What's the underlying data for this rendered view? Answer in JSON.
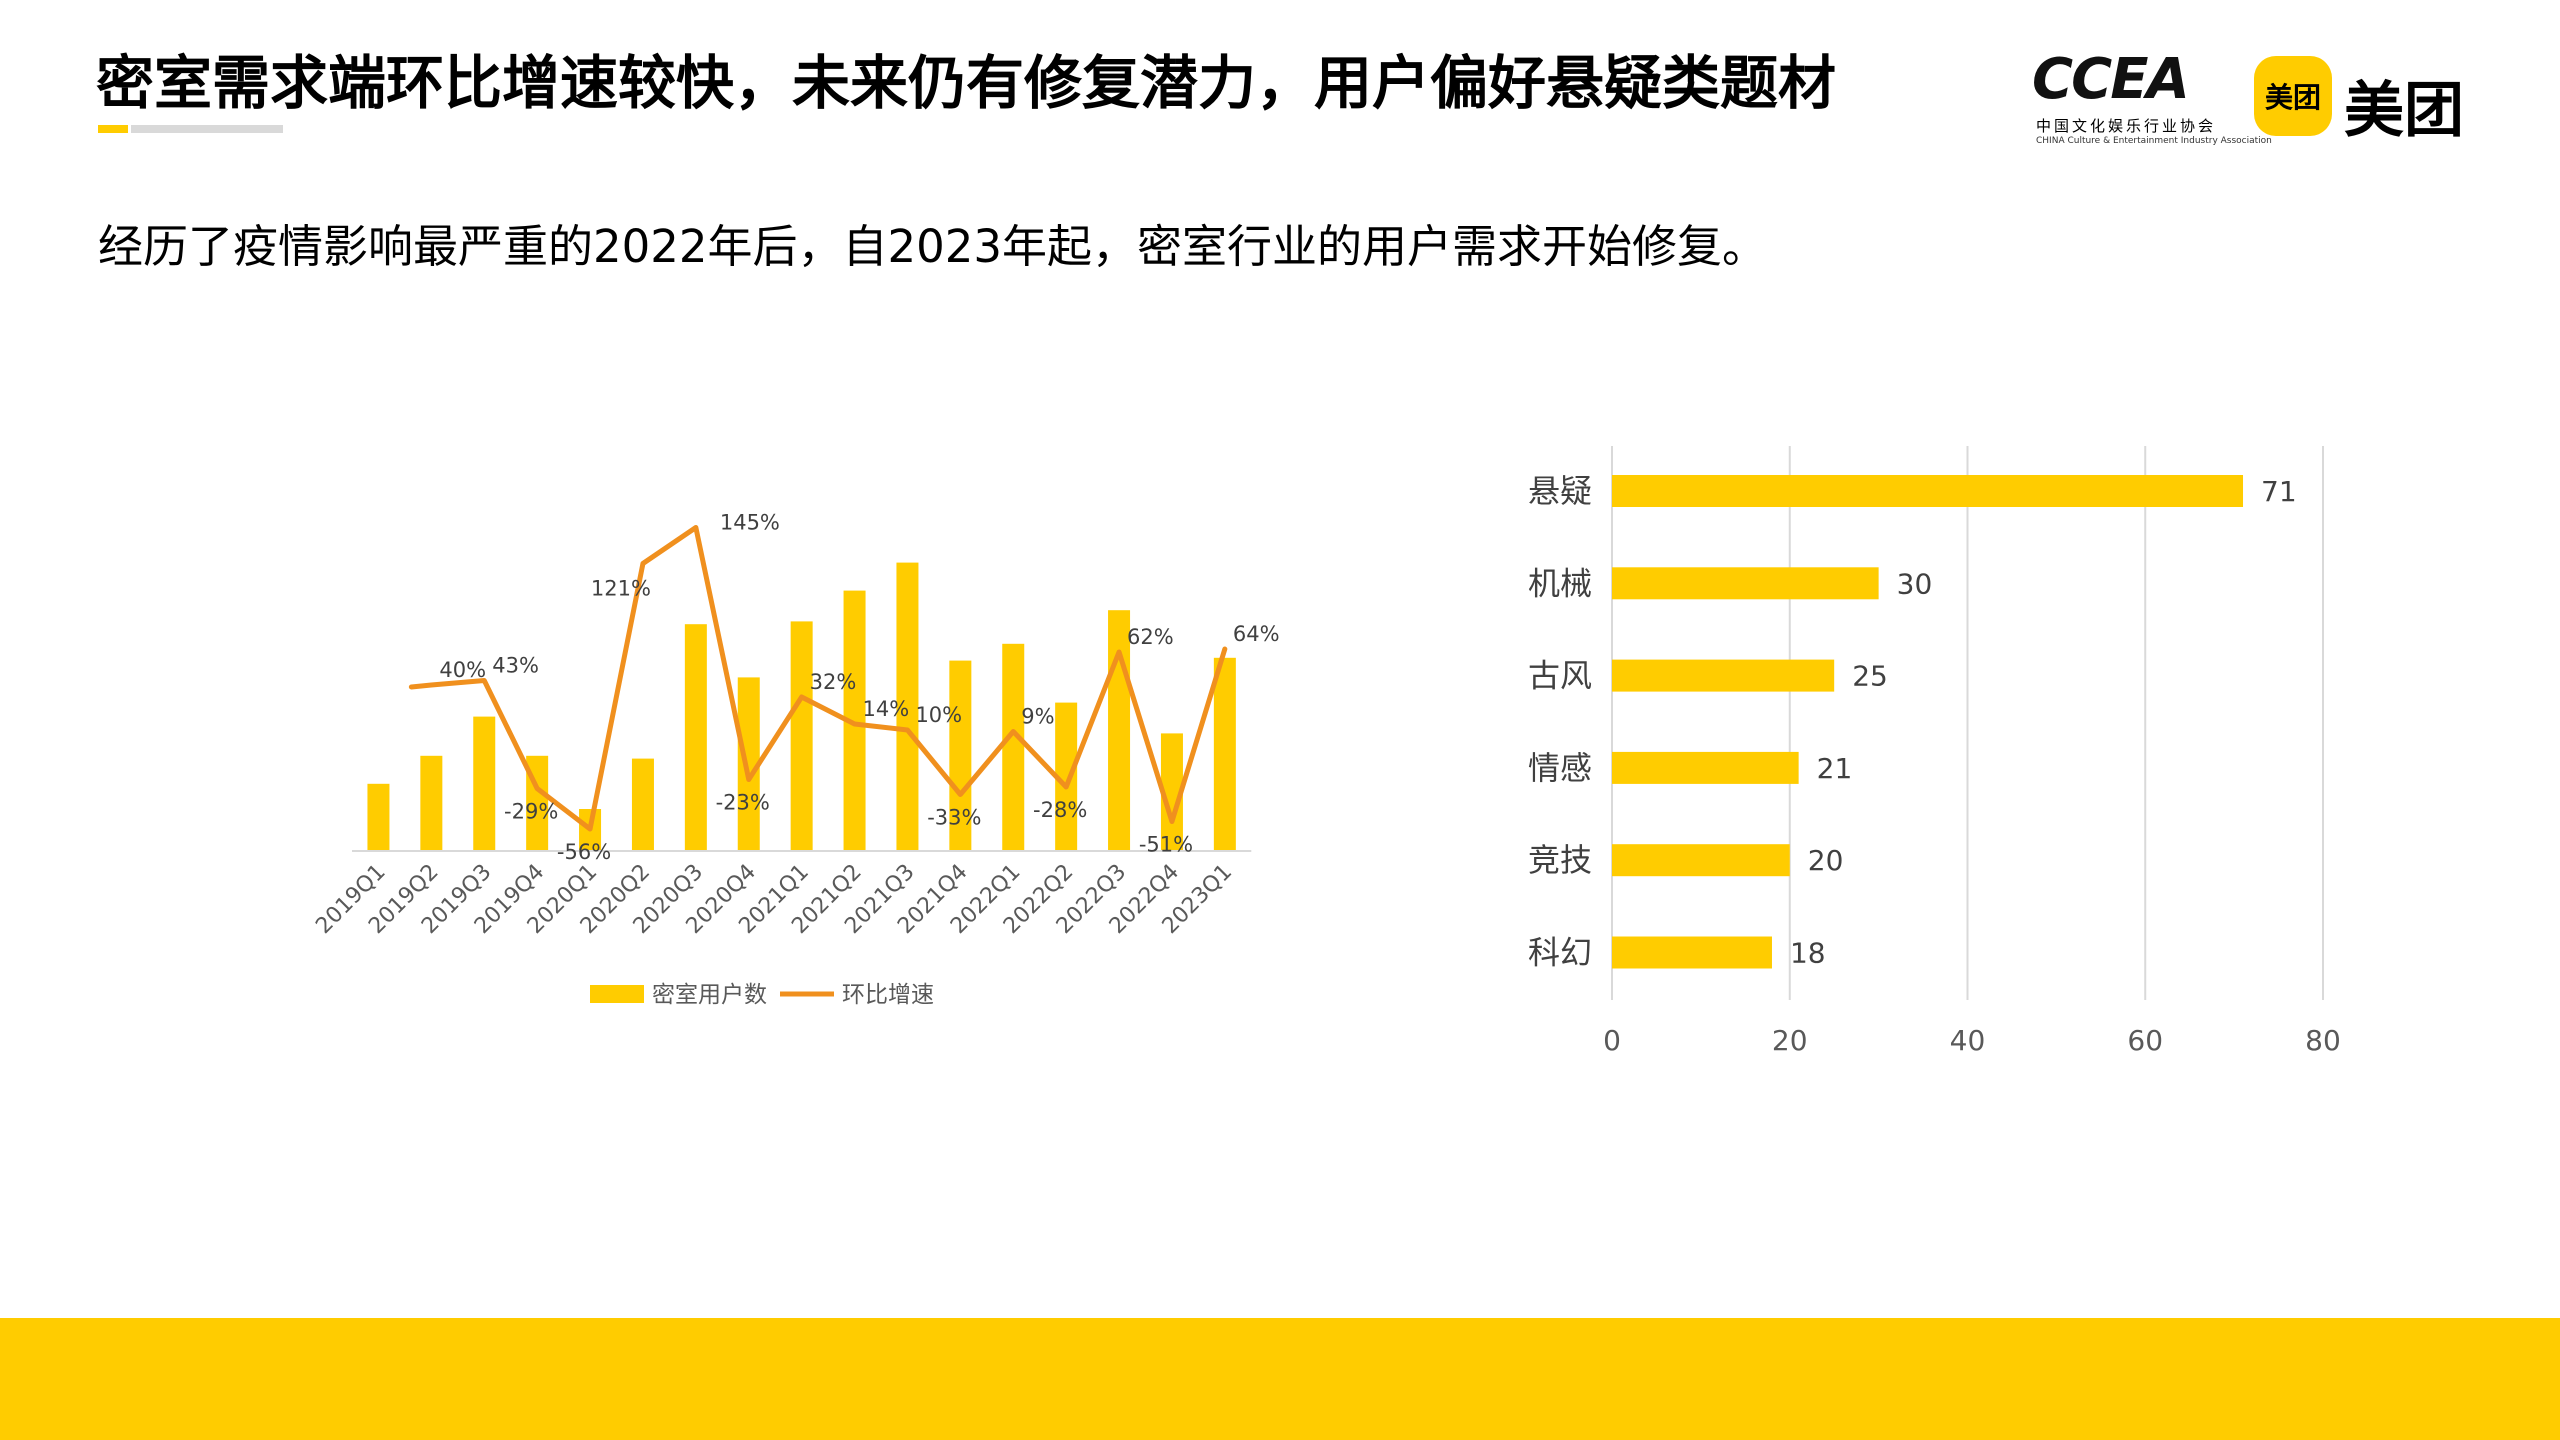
{
  "header": {
    "title": "密室需求端环比增速较快，未来仍有修复潜力，用户偏好悬疑类题材",
    "subtitle": "经历了疫情影响最严重的2022年后，自2023年起，密室行业的用户需求开始修复。"
  },
  "logos": {
    "ccea_text": "CCEA",
    "ccea_cn": "中国文化娱乐行业协会",
    "ccea_en": "CHINA Culture & Entertainment Industry Association",
    "meituan_badge": "美团",
    "meituan_text": "美团"
  },
  "colors": {
    "bar": "#ffcc00",
    "line": "#f0901e",
    "footer": "#ffcc00",
    "accent": "#ffcc00"
  },
  "chart_data": [
    {
      "type": "bar+line",
      "categories": [
        "2019Q1",
        "2019Q2",
        "2019Q3",
        "2019Q4",
        "2020Q1",
        "2020Q2",
        "2020Q3",
        "2020Q4",
        "2021Q1",
        "2021Q2",
        "2021Q3",
        "2021Q4",
        "2022Q1",
        "2022Q2",
        "2022Q3",
        "2022Q4",
        "2023Q1"
      ],
      "bar_series": {
        "name": "密室用户数",
        "values": [
          24,
          34,
          48,
          34,
          15,
          33,
          81,
          62,
          82,
          93,
          103,
          68,
          74,
          53,
          86,
          42,
          69
        ]
      },
      "line_series": {
        "name": "环比增速",
        "values": [
          null,
          40,
          43,
          -29,
          -56,
          121,
          145,
          -23,
          32,
          14,
          10,
          -33,
          9,
          -28,
          62,
          -51,
          64
        ],
        "labels": [
          null,
          "40%",
          "43%",
          "-29%",
          "-56%",
          "121%",
          "145%",
          "-23%",
          "32%",
          "14%",
          "10%",
          "-33%",
          "9%",
          "-28%",
          "62%",
          "-51%",
          "64%"
        ]
      },
      "legend": [
        "密室用户数",
        "环比增速"
      ],
      "legend_position": "bottom"
    },
    {
      "type": "bar",
      "orientation": "horizontal",
      "categories": [
        "悬疑",
        "机械",
        "古风",
        "情感",
        "竞技",
        "科幻"
      ],
      "values": [
        71,
        30,
        25,
        21,
        20,
        18
      ],
      "xlim": [
        0,
        80
      ],
      "xticks": [
        "0",
        "20",
        "40",
        "60",
        "80"
      ],
      "grid": true
    }
  ]
}
